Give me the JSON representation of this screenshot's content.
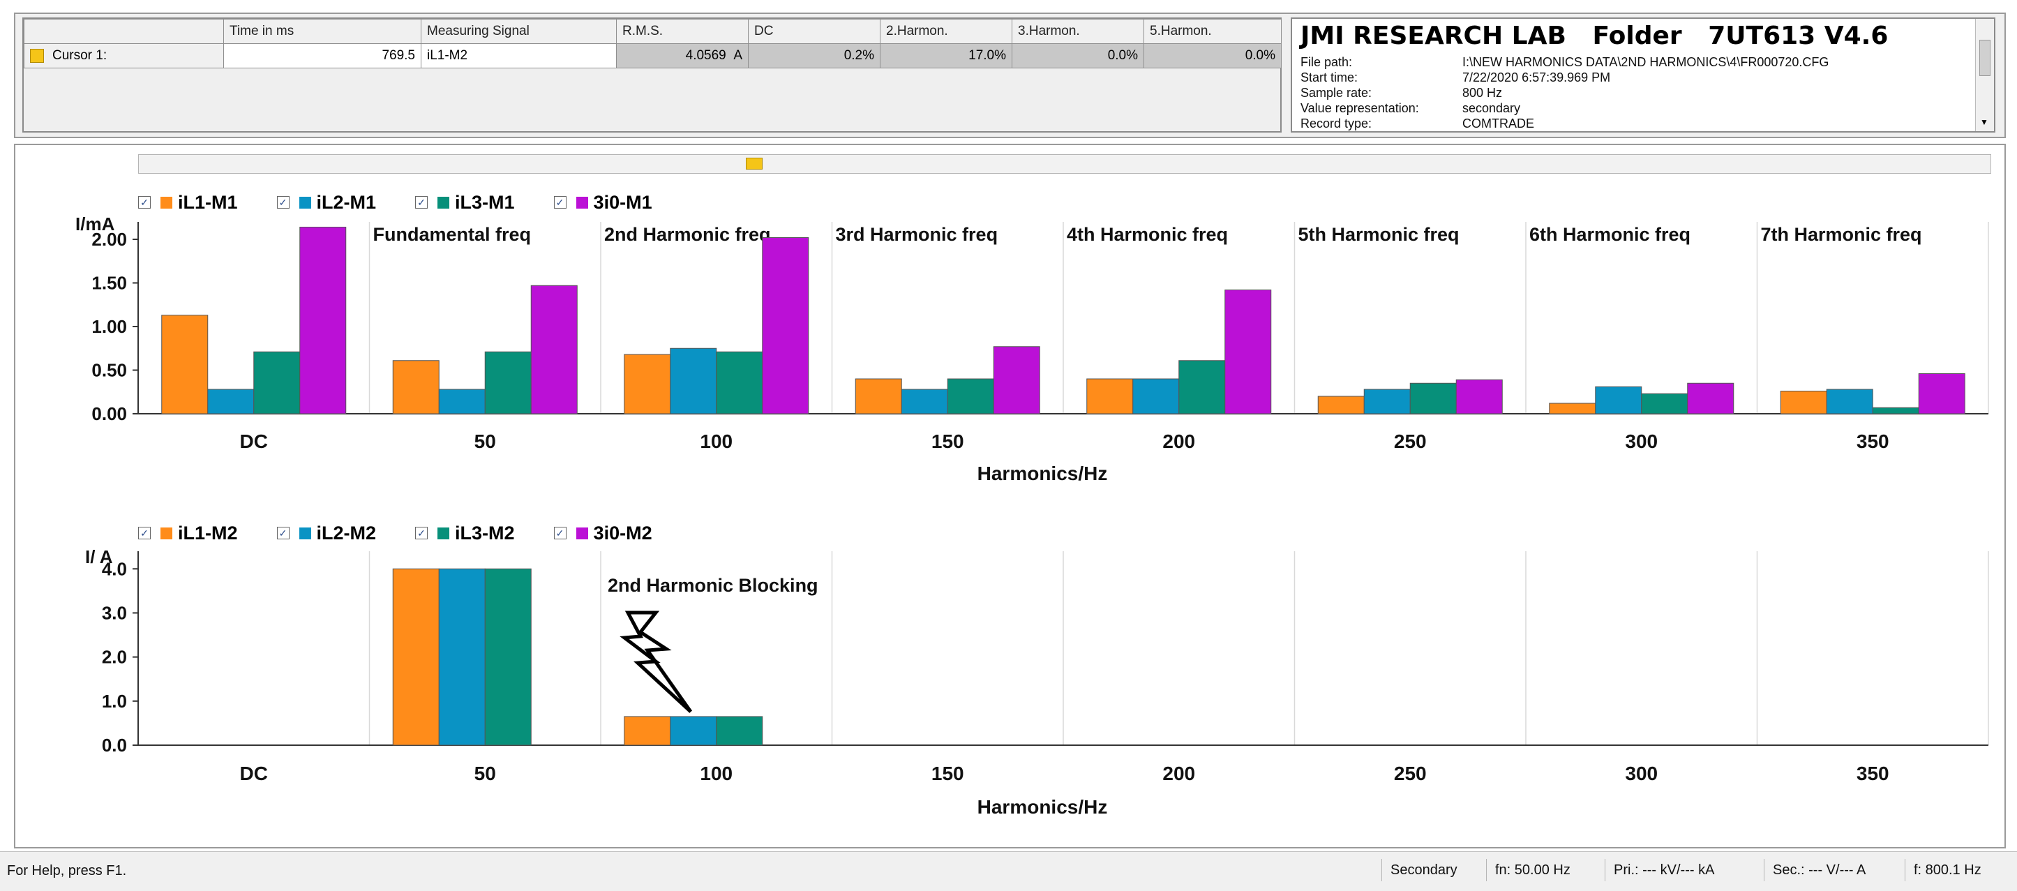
{
  "cursor_table": {
    "headers": [
      "",
      "Time in ms",
      "Measuring Signal",
      "R.M.S.",
      "DC",
      "2.Harmon.",
      "3.Harmon.",
      "5.Harmon."
    ],
    "rows": [
      {
        "name": "Cursor 1:",
        "swatch_color": "#f5c518",
        "time_ms": "769.5",
        "signal": "iL1-M2",
        "rms": "4.0569",
        "rms_unit": "A",
        "dc": "0.2%",
        "harm2": "17.0%",
        "harm3": "0.0%",
        "harm5": "0.0%"
      }
    ]
  },
  "info": {
    "title": "JMI RESEARCH LAB   Folder   7UT613 V4.6",
    "rows": [
      {
        "key": "File path:",
        "value": "I:\\NEW HARMONICS DATA\\2ND HARMONICS\\4\\FR000720.CFG"
      },
      {
        "key": "Start time:",
        "value": "7/22/2020 6:57:39.969 PM"
      },
      {
        "key": "Sample rate:",
        "value": "800 Hz"
      },
      {
        "key": "Value representation:",
        "value": "secondary"
      },
      {
        "key": "Record type:",
        "value": "COMTRADE"
      }
    ]
  },
  "colors": {
    "iL1": "#ff8c1a",
    "iL2": "#0a93c4",
    "iL3": "#07907a",
    "3i0": "#bb10d6",
    "cursor": "#f5c518"
  },
  "chart_data": [
    {
      "type": "bar",
      "ylabel": "I/mA",
      "xlabel": "Harmonics/Hz",
      "categories": [
        "DC",
        "50",
        "100",
        "150",
        "200",
        "250",
        "300",
        "350"
      ],
      "section_labels": [
        "",
        "Fundamental freq",
        "2nd Harmonic freq",
        "3rd Harmonic freq",
        "4th Harmonic freq",
        "5th Harmonic freq",
        "6th Harmonic freq",
        "7th Harmonic freq"
      ],
      "yticks": [
        "0.00",
        "0.50",
        "1.00",
        "1.50",
        "2.00"
      ],
      "ylim": [
        0,
        2.2
      ],
      "series": [
        {
          "name": "iL1-M1",
          "color_key": "iL1",
          "values": [
            1.13,
            0.61,
            0.68,
            0.4,
            0.4,
            0.2,
            0.12,
            0.26
          ]
        },
        {
          "name": "iL2-M1",
          "color_key": "iL2",
          "values": [
            0.28,
            0.28,
            0.75,
            0.28,
            0.4,
            0.28,
            0.31,
            0.28
          ]
        },
        {
          "name": "iL3-M1",
          "color_key": "iL3",
          "values": [
            0.71,
            0.71,
            0.71,
            0.4,
            0.61,
            0.35,
            0.23,
            0.07
          ]
        },
        {
          "name": "3i0-M1",
          "color_key": "3i0",
          "values": [
            2.14,
            1.47,
            2.02,
            0.77,
            1.42,
            0.39,
            0.35,
            0.46
          ]
        }
      ],
      "legend_position": "top-left",
      "grid": "vertical"
    },
    {
      "type": "bar",
      "ylabel": "I/ A",
      "xlabel": "Harmonics/Hz",
      "categories": [
        "DC",
        "50",
        "100",
        "150",
        "200",
        "250",
        "300",
        "350"
      ],
      "yticks": [
        "0.0",
        "1.0",
        "2.0",
        "3.0",
        "4.0"
      ],
      "ylim": [
        0,
        4.4
      ],
      "annotation": "2nd Harmonic Blocking",
      "series": [
        {
          "name": "iL1-M2",
          "color_key": "iL1",
          "values": [
            0,
            4.0,
            0.65,
            0,
            0,
            0,
            0,
            0
          ]
        },
        {
          "name": "iL2-M2",
          "color_key": "iL2",
          "values": [
            0,
            4.0,
            0.65,
            0,
            0,
            0,
            0,
            0
          ]
        },
        {
          "name": "iL3-M2",
          "color_key": "iL3",
          "values": [
            0,
            4.0,
            0.65,
            0,
            0,
            0,
            0,
            0
          ]
        },
        {
          "name": "3i0-M2",
          "color_key": "3i0",
          "values": [
            0,
            0,
            0,
            0,
            0,
            0,
            0,
            0
          ]
        }
      ],
      "legend_position": "top-left",
      "grid": "vertical"
    }
  ],
  "status": {
    "help": "For Help, press F1.",
    "mode": "Secondary",
    "fn": "fn: 50.00 Hz",
    "pri": "Pri.: --- kV/--- kA",
    "sec": "Sec.: --- V/--- A",
    "f": "f: 800.1  Hz"
  }
}
